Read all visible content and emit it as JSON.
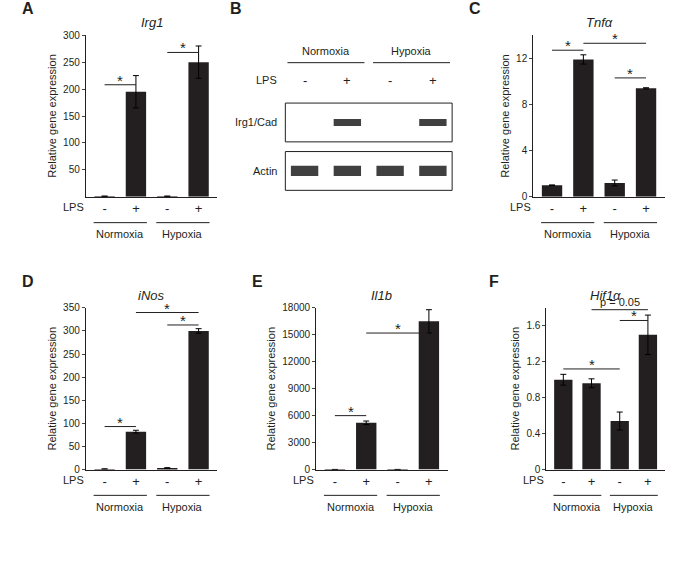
{
  "chart_data": [
    {
      "type": "bar",
      "panel": "A",
      "title": "Irg1",
      "ylabel": "Relative gene expression",
      "x_label": "LPS",
      "categories": [
        "-",
        "+",
        "-",
        "+"
      ],
      "groups": [
        "Normoxia",
        "Hypoxia"
      ],
      "values": [
        1,
        195,
        1,
        250
      ],
      "errors": [
        0.5,
        30,
        0.5,
        30
      ],
      "color": "#231f20",
      "ylim": [
        0,
        300
      ],
      "yticks": [
        50,
        100,
        150,
        200,
        250,
        300
      ],
      "grid": false,
      "comparisons": [
        {
          "from": 0,
          "to": 1,
          "y": 208,
          "label": "*"
        },
        {
          "from": 2,
          "to": 3,
          "y": 268,
          "label": "*"
        }
      ]
    },
    {
      "type": "blot",
      "panel": "B",
      "x_label": "LPS",
      "categories": [
        "-",
        "+",
        "-",
        "+"
      ],
      "groups": [
        "Normoxia",
        "Hypoxia"
      ],
      "rows": [
        {
          "label": "Irg1/Cad",
          "bands": [
            false,
            true,
            false,
            true
          ]
        },
        {
          "label": "Actin",
          "bands": [
            true,
            true,
            true,
            true
          ]
        }
      ]
    },
    {
      "type": "bar",
      "panel": "C",
      "title": "Tnfα",
      "ylabel": "Relative gene expression",
      "x_label": "LPS",
      "categories": [
        "-",
        "+",
        "-",
        "+"
      ],
      "groups": [
        "Normoxia",
        "Hypoxia"
      ],
      "values": [
        1,
        11.9,
        1.2,
        9.4
      ],
      "errors": [
        0.03,
        0.4,
        0.25,
        0.05
      ],
      "color": "#231f20",
      "ylim": [
        0,
        14
      ],
      "yticks": [
        0,
        4,
        8,
        12
      ],
      "grid": false,
      "comparisons": [
        {
          "from": 0,
          "to": 1,
          "y": 12.7,
          "label": "*"
        },
        {
          "from": 1,
          "to": 3,
          "y": 13.3,
          "label": "*"
        },
        {
          "from": 2,
          "to": 3,
          "y": 10.3,
          "label": "*"
        }
      ]
    },
    {
      "type": "bar",
      "panel": "D",
      "title": "iNos",
      "ylabel": "Relative gene expression",
      "x_label": "LPS",
      "categories": [
        "-",
        "+",
        "-",
        "+"
      ],
      "groups": [
        "Normoxia",
        "Hypoxia"
      ],
      "values": [
        1,
        82,
        3,
        300
      ],
      "errors": [
        0.5,
        3,
        1,
        5
      ],
      "color": "#231f20",
      "ylim": [
        0,
        350
      ],
      "yticks": [
        0,
        50,
        100,
        150,
        200,
        250,
        300,
        350
      ],
      "grid": false,
      "comparisons": [
        {
          "from": 0,
          "to": 1,
          "y": 93,
          "label": "*"
        },
        {
          "from": 1,
          "to": 3,
          "y": 340,
          "label": "*"
        },
        {
          "from": 2,
          "to": 3,
          "y": 313,
          "label": "*"
        }
      ]
    },
    {
      "type": "bar",
      "panel": "E",
      "title": "Il1b",
      "ylabel": "Relative gene expression",
      "x_label": "LPS",
      "categories": [
        "-",
        "+",
        "-",
        "+"
      ],
      "groups": [
        "Normoxia",
        "Hypoxia"
      ],
      "values": [
        5,
        5200,
        5,
        16500
      ],
      "errors": [
        2,
        200,
        2,
        1300
      ],
      "color": "#231f20",
      "ylim": [
        0,
        18000
      ],
      "yticks": [
        0,
        3000,
        6000,
        9000,
        12000,
        15000,
        18000
      ],
      "grid": false,
      "comparisons": [
        {
          "from": 0,
          "to": 1,
          "y": 6000,
          "label": "*"
        },
        {
          "from": 1,
          "to": 3,
          "y": 15200,
          "label": "*"
        }
      ]
    },
    {
      "type": "bar",
      "panel": "F",
      "title": "Hif1α",
      "ylabel": "Relative gene expression",
      "x_label": "LPS",
      "categories": [
        "-",
        "+",
        "-",
        "+"
      ],
      "groups": [
        "Normoxia",
        "Hypoxia"
      ],
      "values": [
        1.0,
        0.96,
        0.54,
        1.5
      ],
      "errors": [
        0.06,
        0.05,
        0.1,
        0.22
      ],
      "color": "#231f20",
      "ylim": [
        0,
        1.8
      ],
      "yticks": [
        0,
        0.4,
        0.8,
        1.2,
        1.6
      ],
      "grid": false,
      "comparisons": [
        {
          "from": 0,
          "to": 2,
          "y": 1.12,
          "label": "*"
        },
        {
          "from": 1,
          "to": 3,
          "y": 1.78,
          "label": "p = 0.05"
        },
        {
          "from": 2,
          "to": 3,
          "y": 1.66,
          "label": "*"
        }
      ]
    }
  ]
}
